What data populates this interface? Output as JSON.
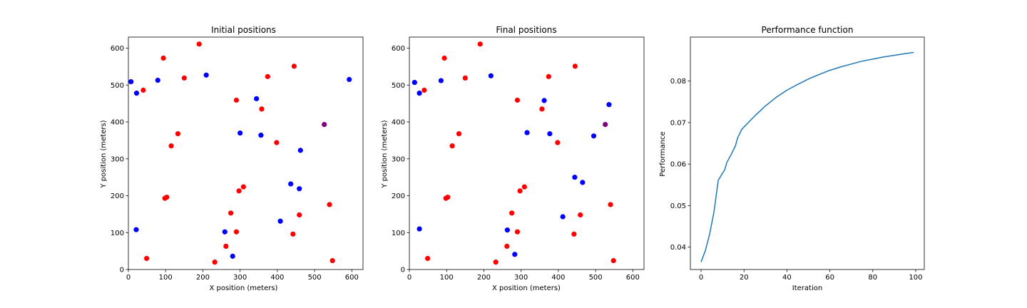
{
  "chart_data": [
    {
      "type": "scatter",
      "title": "Initial positions",
      "xlabel": "X position (meters)",
      "ylabel": "Y position (meters)",
      "xlim": [
        0,
        630
      ],
      "ylim": [
        0,
        630
      ],
      "xticks": [
        0,
        100,
        200,
        300,
        400,
        500,
        600
      ],
      "yticks": [
        0,
        100,
        200,
        300,
        400,
        500,
        600
      ],
      "grid": false,
      "colors": {
        "red": "#ff0000",
        "blue": "#0000ff",
        "purple": "#800080"
      },
      "points": [
        {
          "x": 190,
          "y": 611,
          "color": "red"
        },
        {
          "x": 94,
          "y": 573,
          "color": "red"
        },
        {
          "x": 445,
          "y": 551,
          "color": "red"
        },
        {
          "x": 209,
          "y": 527,
          "color": "blue"
        },
        {
          "x": 150,
          "y": 519,
          "color": "red"
        },
        {
          "x": 374,
          "y": 523,
          "color": "red"
        },
        {
          "x": 593,
          "y": 515,
          "color": "blue"
        },
        {
          "x": 79,
          "y": 513,
          "color": "blue"
        },
        {
          "x": 7,
          "y": 509,
          "color": "blue"
        },
        {
          "x": 40,
          "y": 486,
          "color": "red"
        },
        {
          "x": 22,
          "y": 478,
          "color": "blue"
        },
        {
          "x": 344,
          "y": 463,
          "color": "blue"
        },
        {
          "x": 290,
          "y": 459,
          "color": "red"
        },
        {
          "x": 358,
          "y": 435,
          "color": "red"
        },
        {
          "x": 526,
          "y": 393,
          "color": "purple"
        },
        {
          "x": 300,
          "y": 370,
          "color": "blue"
        },
        {
          "x": 133,
          "y": 368,
          "color": "red"
        },
        {
          "x": 356,
          "y": 364,
          "color": "blue"
        },
        {
          "x": 398,
          "y": 344,
          "color": "red"
        },
        {
          "x": 115,
          "y": 335,
          "color": "red"
        },
        {
          "x": 462,
          "y": 323,
          "color": "blue"
        },
        {
          "x": 436,
          "y": 232,
          "color": "blue"
        },
        {
          "x": 309,
          "y": 224,
          "color": "red"
        },
        {
          "x": 459,
          "y": 219,
          "color": "blue"
        },
        {
          "x": 297,
          "y": 213,
          "color": "red"
        },
        {
          "x": 103,
          "y": 196,
          "color": "red"
        },
        {
          "x": 98,
          "y": 193,
          "color": "red"
        },
        {
          "x": 540,
          "y": 176,
          "color": "red"
        },
        {
          "x": 275,
          "y": 153,
          "color": "red"
        },
        {
          "x": 459,
          "y": 148,
          "color": "red"
        },
        {
          "x": 408,
          "y": 131,
          "color": "blue"
        },
        {
          "x": 21,
          "y": 108,
          "color": "blue"
        },
        {
          "x": 290,
          "y": 102,
          "color": "red"
        },
        {
          "x": 259,
          "y": 102,
          "color": "blue"
        },
        {
          "x": 442,
          "y": 96,
          "color": "red"
        },
        {
          "x": 262,
          "y": 63,
          "color": "red"
        },
        {
          "x": 280,
          "y": 36,
          "color": "blue"
        },
        {
          "x": 49,
          "y": 30,
          "color": "red"
        },
        {
          "x": 548,
          "y": 24,
          "color": "red"
        },
        {
          "x": 232,
          "y": 20,
          "color": "red"
        }
      ]
    },
    {
      "type": "scatter",
      "title": "Final positions",
      "xlabel": "X position (meters)",
      "ylabel": "Y position (meters)",
      "xlim": [
        0,
        630
      ],
      "ylim": [
        0,
        630
      ],
      "xticks": [
        0,
        100,
        200,
        300,
        400,
        500,
        600
      ],
      "yticks": [
        0,
        100,
        200,
        300,
        400,
        500,
        600
      ],
      "grid": false,
      "colors": {
        "red": "#ff0000",
        "blue": "#0000ff",
        "purple": "#800080"
      },
      "points": [
        {
          "x": 190,
          "y": 611,
          "color": "red"
        },
        {
          "x": 94,
          "y": 573,
          "color": "red"
        },
        {
          "x": 445,
          "y": 551,
          "color": "red"
        },
        {
          "x": 219,
          "y": 525,
          "color": "blue"
        },
        {
          "x": 150,
          "y": 519,
          "color": "red"
        },
        {
          "x": 374,
          "y": 523,
          "color": "red"
        },
        {
          "x": 85,
          "y": 512,
          "color": "blue"
        },
        {
          "x": 14,
          "y": 507,
          "color": "blue"
        },
        {
          "x": 40,
          "y": 486,
          "color": "red"
        },
        {
          "x": 27,
          "y": 478,
          "color": "blue"
        },
        {
          "x": 290,
          "y": 459,
          "color": "red"
        },
        {
          "x": 362,
          "y": 458,
          "color": "blue"
        },
        {
          "x": 536,
          "y": 447,
          "color": "blue"
        },
        {
          "x": 356,
          "y": 435,
          "color": "red"
        },
        {
          "x": 526,
          "y": 393,
          "color": "purple"
        },
        {
          "x": 316,
          "y": 371,
          "color": "blue"
        },
        {
          "x": 133,
          "y": 368,
          "color": "red"
        },
        {
          "x": 377,
          "y": 368,
          "color": "blue"
        },
        {
          "x": 495,
          "y": 362,
          "color": "blue"
        },
        {
          "x": 398,
          "y": 344,
          "color": "red"
        },
        {
          "x": 115,
          "y": 335,
          "color": "red"
        },
        {
          "x": 444,
          "y": 250,
          "color": "blue"
        },
        {
          "x": 465,
          "y": 236,
          "color": "blue"
        },
        {
          "x": 309,
          "y": 224,
          "color": "red"
        },
        {
          "x": 297,
          "y": 213,
          "color": "red"
        },
        {
          "x": 103,
          "y": 196,
          "color": "red"
        },
        {
          "x": 98,
          "y": 193,
          "color": "red"
        },
        {
          "x": 540,
          "y": 176,
          "color": "red"
        },
        {
          "x": 275,
          "y": 153,
          "color": "red"
        },
        {
          "x": 459,
          "y": 148,
          "color": "red"
        },
        {
          "x": 412,
          "y": 143,
          "color": "blue"
        },
        {
          "x": 27,
          "y": 110,
          "color": "blue"
        },
        {
          "x": 263,
          "y": 107,
          "color": "blue"
        },
        {
          "x": 290,
          "y": 102,
          "color": "red"
        },
        {
          "x": 442,
          "y": 96,
          "color": "red"
        },
        {
          "x": 262,
          "y": 63,
          "color": "red"
        },
        {
          "x": 283,
          "y": 41,
          "color": "blue"
        },
        {
          "x": 49,
          "y": 30,
          "color": "red"
        },
        {
          "x": 548,
          "y": 24,
          "color": "red"
        },
        {
          "x": 232,
          "y": 20,
          "color": "red"
        }
      ]
    },
    {
      "type": "line",
      "title": "Performance function",
      "xlabel": "Iteration",
      "ylabel": "Performance",
      "xlim": [
        -5,
        104
      ],
      "ylim": [
        0.0346,
        0.0906
      ],
      "xticks": [
        0,
        20,
        40,
        60,
        80,
        100
      ],
      "yticks": [
        0.04,
        0.05,
        0.06,
        0.07,
        0.08
      ],
      "ytick_labels": [
        "0.04",
        "0.05",
        "0.06",
        "0.07",
        "0.08"
      ],
      "grid": false,
      "series": [
        {
          "color": "#1f77b4",
          "x": [
            0,
            2,
            4,
            6,
            8,
            10,
            11,
            12,
            14,
            16,
            17,
            19,
            22,
            25,
            30,
            35,
            40,
            45,
            50,
            55,
            60,
            65,
            70,
            75,
            80,
            85,
            90,
            95,
            99
          ],
          "y": [
            0.0364,
            0.0392,
            0.0432,
            0.0485,
            0.0561,
            0.0578,
            0.0586,
            0.0604,
            0.0623,
            0.0644,
            0.0663,
            0.0684,
            0.07,
            0.0716,
            0.074,
            0.0761,
            0.0778,
            0.0792,
            0.0805,
            0.0816,
            0.0826,
            0.0834,
            0.0841,
            0.0848,
            0.0853,
            0.0858,
            0.0862,
            0.0866,
            0.0869
          ]
        }
      ]
    }
  ]
}
